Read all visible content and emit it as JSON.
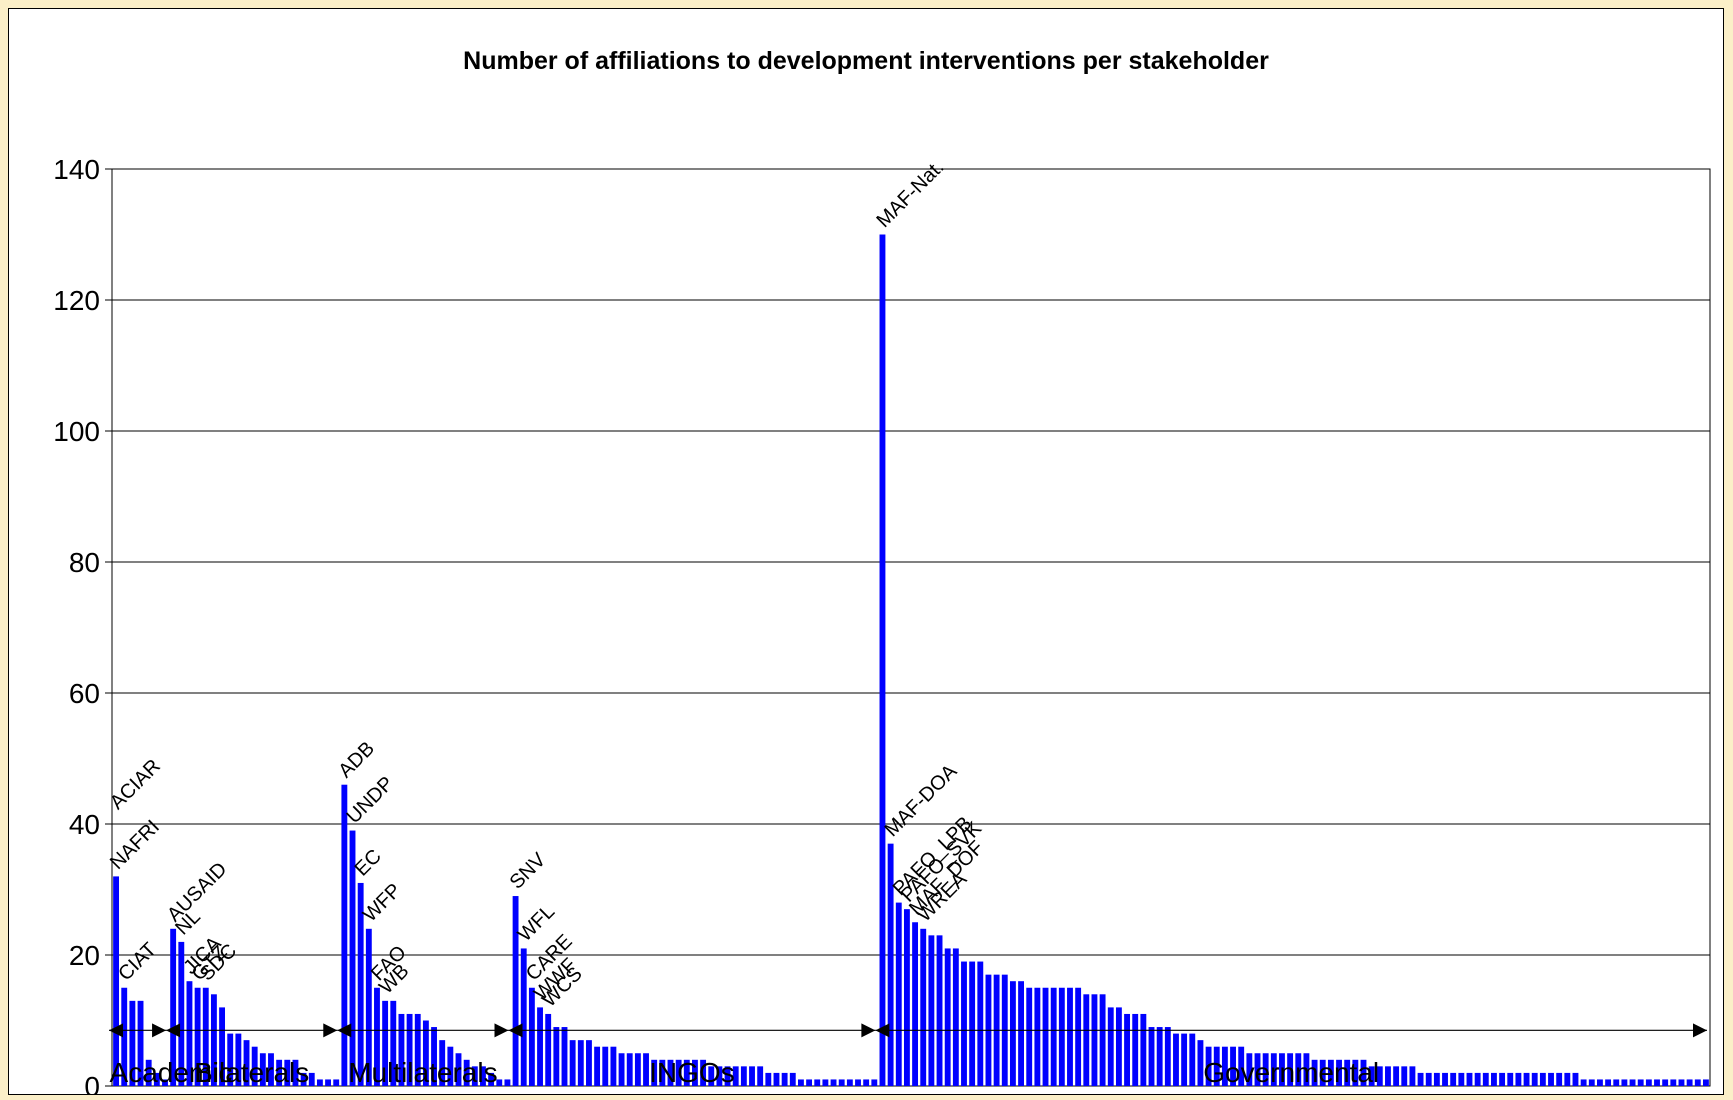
{
  "chart_data": {
    "type": "bar",
    "title": "Number of affiliations to development interventions per stakeholder",
    "xlabel": "",
    "ylabel": "",
    "ylim": [
      0,
      140
    ],
    "yticks": [
      0,
      20,
      40,
      60,
      80,
      100,
      120,
      140
    ],
    "grid": true,
    "bar_color": "#0000ff",
    "values": [
      32,
      15,
      13,
      13,
      4,
      2,
      1,
      24,
      22,
      16,
      15,
      15,
      14,
      12,
      8,
      8,
      7,
      6,
      5,
      5,
      4,
      4,
      4,
      2,
      2,
      1,
      1,
      1,
      46,
      39,
      31,
      24,
      15,
      13,
      13,
      11,
      11,
      11,
      10,
      9,
      7,
      6,
      5,
      4,
      3,
      3,
      2,
      1,
      1,
      29,
      21,
      15,
      12,
      11,
      9,
      9,
      7,
      7,
      7,
      6,
      6,
      6,
      5,
      5,
      5,
      5,
      4,
      4,
      4,
      4,
      4,
      4,
      4,
      3,
      3,
      3,
      3,
      3,
      3,
      3,
      2,
      2,
      2,
      2,
      1,
      1,
      1,
      1,
      1,
      1,
      1,
      1,
      1,
      1,
      130,
      37,
      28,
      27,
      25,
      24,
      23,
      23,
      21,
      21,
      19,
      19,
      19,
      17,
      17,
      17,
      16,
      16,
      15,
      15,
      15,
      15,
      15,
      15,
      15,
      14,
      14,
      14,
      12,
      12,
      11,
      11,
      11,
      9,
      9,
      9,
      8,
      8,
      8,
      7,
      6,
      6,
      6,
      6,
      6,
      5,
      5,
      5,
      5,
      5,
      5,
      5,
      5,
      4,
      4,
      4,
      4,
      4,
      4,
      4,
      3,
      3,
      3,
      3,
      3,
      3,
      2,
      2,
      2,
      2,
      2,
      2,
      2,
      2,
      2,
      2,
      2,
      2,
      2,
      2,
      2,
      2,
      2,
      2,
      2,
      2,
      1,
      1,
      1,
      1,
      1,
      1,
      1,
      1,
      1,
      1,
      1,
      1,
      1,
      1,
      1,
      1
    ],
    "bar_labels": [
      {
        "text": "NAFRI",
        "index": 0,
        "value": 32
      },
      {
        "text": "ACIAR",
        "index": 0,
        "value": 32
      },
      {
        "text": "CIAT",
        "index": 1,
        "value": 15
      },
      {
        "text": "AUSAID",
        "index": 7,
        "value": 24
      },
      {
        "text": "NL",
        "index": 8,
        "value": 22
      },
      {
        "text": "JICA",
        "index": 9,
        "value": 16
      },
      {
        "text": "GTZ",
        "index": 10,
        "value": 15
      },
      {
        "text": "SDC",
        "index": 11,
        "value": 15
      },
      {
        "text": "ADB",
        "index": 28,
        "value": 46
      },
      {
        "text": "UNDP",
        "index": 29,
        "value": 39
      },
      {
        "text": "EC",
        "index": 30,
        "value": 31
      },
      {
        "text": "WFP",
        "index": 31,
        "value": 24
      },
      {
        "text": "FAO",
        "index": 32,
        "value": 15
      },
      {
        "text": "WB",
        "index": 33,
        "value": 13
      },
      {
        "text": "SNV",
        "index": 49,
        "value": 29
      },
      {
        "text": "WFL",
        "index": 50,
        "value": 21
      },
      {
        "text": "CARE",
        "index": 51,
        "value": 15
      },
      {
        "text": "WWF",
        "index": 52,
        "value": 12
      },
      {
        "text": "WCS",
        "index": 53,
        "value": 11
      },
      {
        "text": "MAF-Nat.",
        "index": 94,
        "value": 130
      },
      {
        "text": "MAF-DOA",
        "index": 95,
        "value": 37
      },
      {
        "text": "PAFO_LPB",
        "index": 96,
        "value": 28
      },
      {
        "text": "PAFO_SVK",
        "index": 97,
        "value": 27
      },
      {
        "text": "MAF_DOF",
        "index": 98,
        "value": 25
      },
      {
        "text": "WREA",
        "index": 99,
        "value": 24
      }
    ],
    "groups": [
      {
        "name": "Academic",
        "start": 0,
        "end": 6
      },
      {
        "name": "Bilaterals",
        "start": 7,
        "end": 27
      },
      {
        "name": "Multilaterals",
        "start": 28,
        "end": 48
      },
      {
        "name": "INGOs",
        "start": 49,
        "end": 93
      },
      {
        "name": "Governmental",
        "start": 94,
        "end": 195
      }
    ]
  }
}
